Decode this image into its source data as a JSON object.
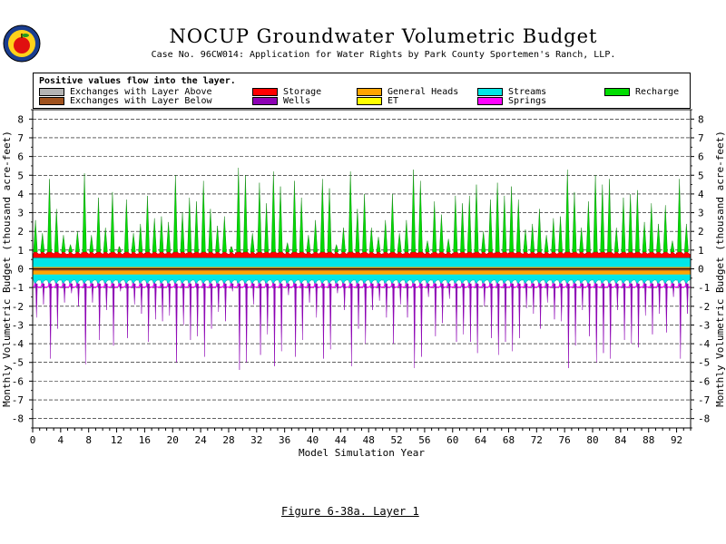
{
  "title": "NOCUP Groundwater Volumetric Budget",
  "subtitle": "Case No. 96CW014: Application for Water Rights by Park County Sportemen's Ranch, LLP.",
  "caption": "Figure 6-38a.  Layer 1",
  "legend": {
    "note": "Positive values flow into the layer.",
    "items": [
      {
        "label": "Exchanges with Layer Above",
        "color": "#b4b4b4"
      },
      {
        "label": "Exchanges with Layer Below",
        "color": "#a0521e"
      },
      {
        "label": "Storage",
        "color": "#ff0000"
      },
      {
        "label": "Wells",
        "color": "#8c00b4"
      },
      {
        "label": "General Heads",
        "color": "#ffa500"
      },
      {
        "label": "ET",
        "color": "#ffff00"
      },
      {
        "label": "Streams",
        "color": "#00e6e6"
      },
      {
        "label": "Springs",
        "color": "#ff00ff"
      },
      {
        "label": "Recharge",
        "color": "#00dc00"
      }
    ]
  },
  "chart_data": {
    "type": "area",
    "xlabel": "Model Simulation Year",
    "ylabel_left": "Monthly Volumetric Budget (thousand acre-feet)",
    "ylabel_right": "Monthly Volumetric Budget (thousand acre-feet)",
    "xlim": [
      0,
      94
    ],
    "ylim": [
      -8.5,
      8.5
    ],
    "xticks": [
      0,
      4,
      8,
      12,
      16,
      20,
      24,
      28,
      32,
      36,
      40,
      44,
      48,
      52,
      56,
      60,
      64,
      68,
      72,
      76,
      80,
      84,
      88,
      92
    ],
    "yticks": [
      -8,
      -7,
      -6,
      -5,
      -4,
      -3,
      -2,
      -1,
      0,
      1,
      2,
      3,
      4,
      5,
      6,
      7,
      8
    ],
    "grid": "horizontal-dashed",
    "recharge_annual_peaks": [
      2.6,
      1.9,
      4.8,
      3.2,
      1.8,
      1.3,
      2.0,
      5.1,
      1.8,
      3.8,
      2.2,
      4.1,
      1.2,
      3.7,
      1.9,
      2.4,
      3.9,
      2.7,
      2.8,
      2.5,
      5.0,
      3.0,
      3.8,
      3.6,
      4.7,
      3.2,
      2.3,
      2.8,
      1.2,
      5.4,
      5.0,
      1.9,
      4.6,
      3.5,
      5.2,
      4.4,
      1.4,
      4.7,
      3.8,
      1.8,
      2.6,
      4.8,
      4.3,
      1.3,
      2.2,
      5.2,
      3.2,
      4.0,
      2.2,
      1.7,
      2.6,
      4.0,
      1.9,
      2.6,
      5.3,
      4.7,
      1.5,
      3.6,
      2.9,
      1.6,
      3.9,
      3.5,
      3.9,
      4.5,
      2.0,
      3.7,
      4.6,
      3.9,
      4.4,
      3.7,
      2.1,
      2.4,
      3.2,
      1.8,
      2.7,
      2.8,
      5.3,
      4.1,
      2.2,
      3.6,
      5.0,
      4.5,
      4.8,
      2.2,
      3.8,
      4.0,
      4.2,
      2.5,
      3.5,
      2.4,
      3.4,
      1.5,
      4.8,
      2.4
    ],
    "wells_annual_troughs": [
      -2.6,
      -1.9,
      -4.8,
      -3.2,
      -1.8,
      -1.3,
      -2.0,
      -5.1,
      -1.8,
      -3.8,
      -2.2,
      -4.1,
      -1.2,
      -3.7,
      -1.9,
      -2.4,
      -3.9,
      -2.7,
      -2.8,
      -2.5,
      -5.0,
      -3.0,
      -3.8,
      -3.6,
      -4.7,
      -3.2,
      -2.3,
      -2.8,
      -1.2,
      -5.4,
      -5.0,
      -1.9,
      -4.6,
      -3.5,
      -5.2,
      -4.4,
      -1.4,
      -4.7,
      -3.8,
      -1.8,
      -2.6,
      -4.8,
      -4.3,
      -1.3,
      -2.2,
      -5.2,
      -3.2,
      -4.0,
      -2.2,
      -1.7,
      -2.6,
      -4.0,
      -1.9,
      -2.6,
      -5.3,
      -4.7,
      -1.5,
      -3.6,
      -2.9,
      -1.6,
      -3.9,
      -3.5,
      -3.9,
      -4.5,
      -2.0,
      -3.7,
      -4.6,
      -3.9,
      -4.4,
      -3.7,
      -2.1,
      -2.4,
      -3.2,
      -1.8,
      -2.7,
      -2.8,
      -5.3,
      -4.1,
      -2.2,
      -3.6,
      -5.0,
      -4.5,
      -4.8,
      -2.2,
      -3.8,
      -4.0,
      -4.2,
      -2.5,
      -3.5,
      -2.4,
      -3.4,
      -1.5,
      -4.8,
      -2.4
    ],
    "series_ranges": {
      "Exchanges with Layer Above": [
        -0.1,
        0.05
      ],
      "Exchanges with Layer Below": [
        -0.1,
        0.05
      ],
      "General Heads": [
        -0.3,
        0.2
      ],
      "Streams": [
        -1.0,
        0.6
      ],
      "Storage": [
        -0.2,
        1.0
      ],
      "Springs": [
        -1.0,
        -0.8
      ],
      "ET": [
        -0.1,
        0
      ]
    }
  }
}
